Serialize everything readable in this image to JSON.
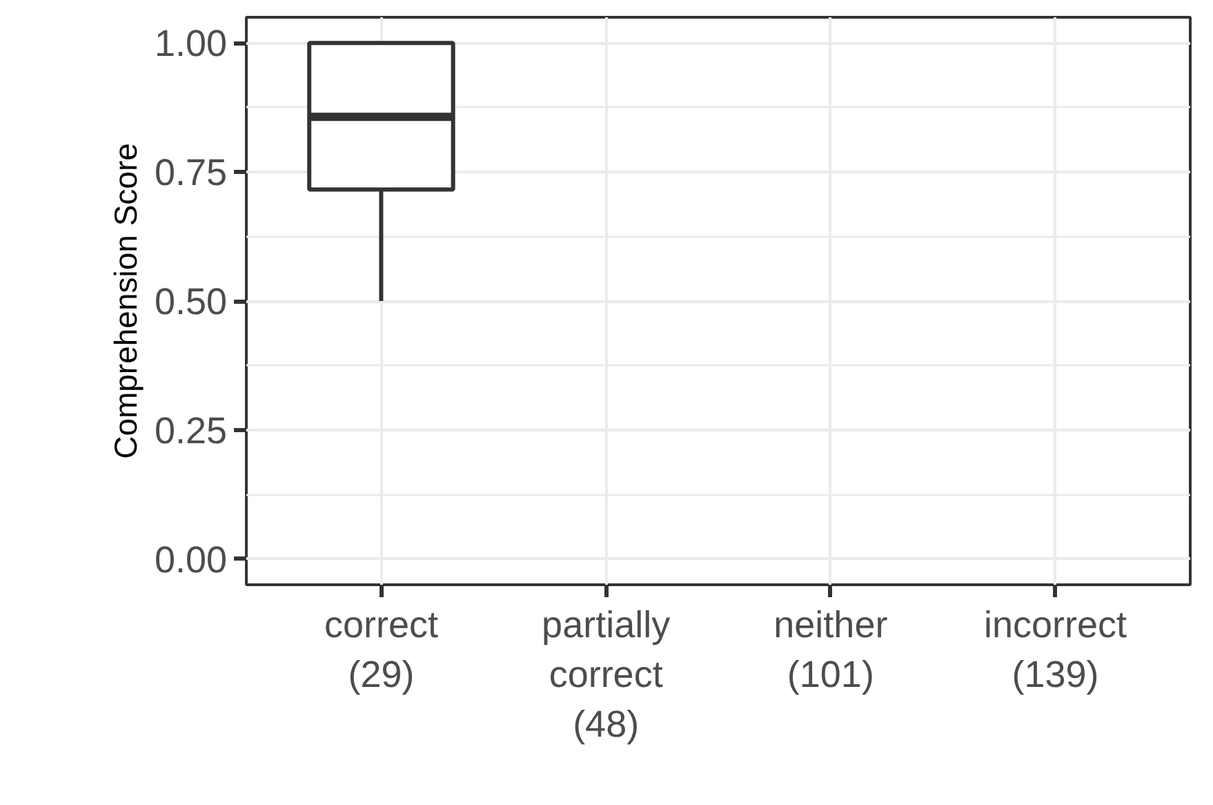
{
  "chart_data": {
    "type": "box",
    "ylabel": "Comprehension Score",
    "categories": [
      "correct\n(29)",
      "partially\ncorrect\n(48)",
      "neither\n(101)",
      "incorrect\n(139)"
    ],
    "boxes": [
      {
        "low": 0.5,
        "q1": 0.716,
        "median": 0.857,
        "q3": 1.0,
        "high": 1.0
      },
      null,
      null,
      null
    ],
    "color": "#333333",
    "ylim": [
      -0.05,
      1.05
    ],
    "yticks": [
      {
        "value": 0,
        "label": "0.00"
      },
      {
        "value": 0.25,
        "label": "0.25"
      },
      {
        "value": 0.5,
        "label": "0.50"
      },
      {
        "value": 0.75,
        "label": "0.75"
      },
      {
        "value": 1,
        "label": "1.00"
      }
    ],
    "grid": true
  }
}
